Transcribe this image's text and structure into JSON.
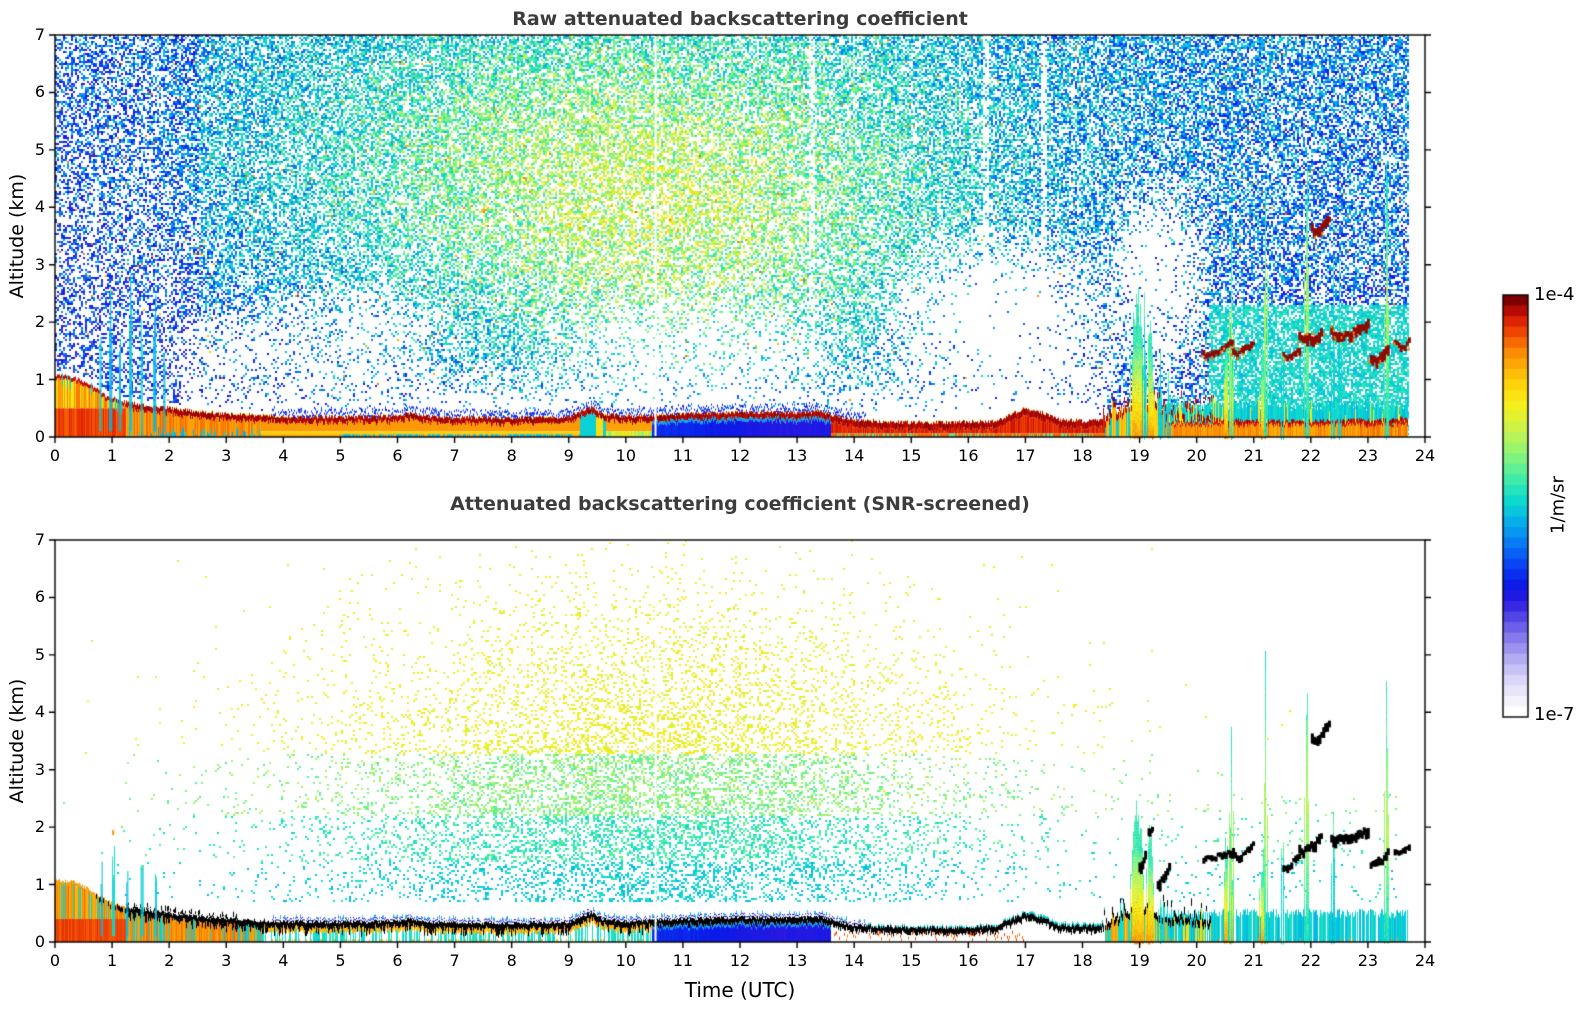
{
  "colors": {
    "background": "#ffffff",
    "frame": "#000000",
    "title_color": "#3c3c3c",
    "cloud_mark_raw": "#8f0b00",
    "cloud_mark_screened": "#000000",
    "colormap": [
      [
        0.0,
        "#ffffff"
      ],
      [
        0.04,
        "#eeecfc"
      ],
      [
        0.08,
        "#d8d4f8"
      ],
      [
        0.13,
        "#b2aaf2"
      ],
      [
        0.18,
        "#8678ec"
      ],
      [
        0.23,
        "#5246e6"
      ],
      [
        0.27,
        "#2718e2"
      ],
      [
        0.31,
        "#0b1ae8"
      ],
      [
        0.35,
        "#0a3cf2"
      ],
      [
        0.39,
        "#0966f6"
      ],
      [
        0.43,
        "#0790f2"
      ],
      [
        0.47,
        "#06b6e6"
      ],
      [
        0.51,
        "#0cd8d0"
      ],
      [
        0.55,
        "#2fe8b4"
      ],
      [
        0.59,
        "#5ff095"
      ],
      [
        0.63,
        "#90f476"
      ],
      [
        0.67,
        "#baf357"
      ],
      [
        0.71,
        "#def236"
      ],
      [
        0.75,
        "#f9ef18"
      ],
      [
        0.79,
        "#fdd70d"
      ],
      [
        0.83,
        "#fdb608"
      ],
      [
        0.87,
        "#fb8f05"
      ],
      [
        0.9,
        "#f76503"
      ],
      [
        0.93,
        "#ec3a02"
      ],
      [
        0.96,
        "#d31703"
      ],
      [
        0.98,
        "#ab0604"
      ],
      [
        1.0,
        "#7e0000"
      ]
    ]
  },
  "colorbar": {
    "max_label": "1e-4",
    "min_label": "1e-7",
    "unit_label": "1/m/sr",
    "steps": 40
  },
  "chart_data": [
    {
      "type": "heatmap",
      "variant": "raw",
      "title": "Raw attenuated backscattering coefficient",
      "xlabel": "",
      "ylabel": "Altitude (km)",
      "xlim": [
        0,
        24
      ],
      "ylim": [
        0,
        7
      ],
      "xticks": [
        0,
        1,
        2,
        3,
        4,
        5,
        6,
        7,
        8,
        9,
        10,
        11,
        12,
        13,
        14,
        15,
        16,
        17,
        18,
        19,
        20,
        21,
        22,
        23,
        24
      ],
      "yticks": [
        0,
        1,
        2,
        3,
        4,
        5,
        6,
        7
      ],
      "value_range": [
        "1e-7",
        "1e-4"
      ],
      "units": "1/m/sr",
      "data_end_time": 23.7,
      "features": {
        "noise_base_density": 0.5,
        "noise_holes": [
          [
            16.5,
            1.9,
            2.4,
            1.9,
            0.03
          ],
          [
            11.2,
            1.5,
            3.0,
            1.2,
            0.25
          ],
          [
            5.0,
            1.7,
            2.2,
            1.1,
            0.3
          ],
          [
            19.3,
            2.8,
            1.0,
            2.0,
            0.08
          ],
          [
            2.9,
            1.5,
            1.2,
            0.8,
            0.3
          ]
        ],
        "faint_gap_times": [
          13.25,
          16.3,
          17.3
        ],
        "gap_times": [
          10.52
        ],
        "boundary_layer_km": [
          [
            0,
            1.08
          ],
          [
            0.3,
            1.05
          ],
          [
            0.6,
            0.93
          ],
          [
            0.9,
            0.72
          ],
          [
            1.2,
            0.62
          ],
          [
            1.6,
            0.55
          ],
          [
            2.0,
            0.5
          ],
          [
            2.5,
            0.44
          ],
          [
            3.0,
            0.4
          ],
          [
            4,
            0.36
          ],
          [
            5,
            0.35
          ],
          [
            6,
            0.36
          ],
          [
            6.2,
            0.42
          ],
          [
            6.4,
            0.36
          ],
          [
            7,
            0.34
          ],
          [
            8,
            0.33
          ],
          [
            9,
            0.35
          ],
          [
            9.4,
            0.52
          ],
          [
            9.6,
            0.4
          ],
          [
            10,
            0.36
          ],
          [
            10.5,
            0.38
          ],
          [
            11,
            0.4
          ],
          [
            11.5,
            0.42
          ],
          [
            12,
            0.43
          ],
          [
            12.5,
            0.43
          ],
          [
            13,
            0.42
          ],
          [
            13.4,
            0.44
          ],
          [
            13.7,
            0.36
          ],
          [
            14,
            0.3
          ],
          [
            14.5,
            0.27
          ],
          [
            15,
            0.25
          ],
          [
            15.5,
            0.25
          ],
          [
            16,
            0.26
          ],
          [
            16.5,
            0.28
          ],
          [
            17.0,
            0.5
          ],
          [
            17.3,
            0.42
          ],
          [
            17.6,
            0.3
          ],
          [
            18,
            0.28
          ],
          [
            18.4,
            0.3
          ],
          [
            18.7,
            0.45
          ],
          [
            19.0,
            0.6
          ],
          [
            19.2,
            0.5
          ],
          [
            19.5,
            0.42
          ],
          [
            19.8,
            0.38
          ],
          [
            20.2,
            0.35
          ],
          [
            20.6,
            0.3
          ],
          [
            21,
            0.28
          ],
          [
            22,
            0.28
          ],
          [
            23,
            0.3
          ],
          [
            23.7,
            0.33
          ]
        ],
        "blue_wedge_time": [
          10.45,
          13.6
        ],
        "cyan_layer_time": [
          19.45,
          23.7
        ],
        "left_streaks": [
          [
            0.78,
            0.04,
            1.8
          ],
          [
            0.95,
            0.05,
            2.3
          ],
          [
            1.12,
            0.04,
            1.5
          ],
          [
            1.3,
            0.05,
            2.5
          ],
          [
            1.5,
            0.04,
            1.9
          ],
          [
            1.72,
            0.05,
            2.2
          ],
          [
            1.9,
            0.04,
            1.4
          ]
        ],
        "plumes": [
          {
            "t": 18.95,
            "w": 0.22,
            "top": 2.3,
            "kind": "yellow"
          },
          {
            "t": 19.18,
            "w": 0.12,
            "top": 1.9,
            "kind": "yellow"
          },
          {
            "t": 19.07,
            "w": 0.05,
            "top": 2.55,
            "kind": "cyan"
          },
          {
            "t": 19.35,
            "w": 0.06,
            "top": 1.45,
            "kind": "cyan"
          },
          {
            "t": 19.5,
            "w": 0.05,
            "top": 1.1,
            "kind": "cyan"
          },
          {
            "t": 20.55,
            "w": 0.14,
            "top": 2.0,
            "kind": "yellow"
          },
          {
            "t": 20.6,
            "w": 0.06,
            "top": 3.4,
            "kind": "green"
          },
          {
            "t": 21.15,
            "w": 0.1,
            "top": 1.55,
            "kind": "yellow"
          },
          {
            "t": 21.2,
            "w": 0.05,
            "top": 4.6,
            "kind": "green"
          },
          {
            "t": 21.5,
            "w": 0.04,
            "top": 2.85,
            "kind": "cyan"
          },
          {
            "t": 21.92,
            "w": 0.07,
            "top": 4.95,
            "kind": "green"
          },
          {
            "t": 22.38,
            "w": 0.05,
            "top": 2.75,
            "kind": "cyan"
          },
          {
            "t": 22.5,
            "w": 0.05,
            "top": 3.6,
            "kind": "cyan"
          },
          {
            "t": 23.32,
            "w": 0.07,
            "top": 4.35,
            "kind": "green"
          }
        ],
        "cloud_segments": [
          {
            "t0": 20.1,
            "t1": 20.6,
            "z0": 1.4,
            "z1": 1.62
          },
          {
            "t0": 20.62,
            "t1": 20.97,
            "z0": 1.39,
            "z1": 1.66
          },
          {
            "t0": 21.5,
            "t1": 21.78,
            "z0": 1.3,
            "z1": 1.55
          },
          {
            "t0": 21.78,
            "t1": 22.16,
            "z0": 1.5,
            "z1": 1.85
          },
          {
            "t0": 22.0,
            "t1": 22.3,
            "z0": 3.45,
            "z1": 3.85
          },
          {
            "t0": 22.34,
            "t1": 22.98,
            "z0": 1.65,
            "z1": 1.98
          },
          {
            "t0": 23.03,
            "t1": 23.33,
            "z0": 1.25,
            "z1": 1.55
          },
          {
            "t0": 23.45,
            "t1": 23.7,
            "z0": 1.5,
            "z1": 1.7
          }
        ]
      }
    },
    {
      "type": "heatmap",
      "variant": "snr_screened",
      "title": "Attenuated backscattering coefficient (SNR-screened)",
      "xlabel": "Time (UTC)",
      "ylabel": "Altitude (km)",
      "xlim": [
        0,
        24
      ],
      "ylim": [
        0,
        7
      ],
      "xticks": [
        0,
        1,
        2,
        3,
        4,
        5,
        6,
        7,
        8,
        9,
        10,
        11,
        12,
        13,
        14,
        15,
        16,
        17,
        18,
        19,
        20,
        21,
        22,
        23,
        24
      ],
      "yticks": [
        0,
        1,
        2,
        3,
        4,
        5,
        6,
        7
      ],
      "value_range": [
        "1e-7",
        "1e-4"
      ],
      "units": "1/m/sr",
      "data_end_time": 23.7,
      "features": {
        "speckle_cloud": {
          "t_center": 10.3,
          "t_sigma": 3.4,
          "z_center": 1.9,
          "z_sigma": 1.55,
          "peak_density": 0.4,
          "tail": {
            "t_center": 10.8,
            "t_sigma": 2.6,
            "z_center": 4.2,
            "z_sigma": 1.3,
            "peak_density": 0.1
          }
        },
        "gap_times": [
          10.52
        ],
        "black_layer_time": [
          0.7,
          20.25
        ],
        "blue_wedge_time": [
          10.45,
          13.6
        ],
        "cyan_layer_time": [
          19.45,
          23.7
        ],
        "isolated_dots": [
          {
            "t": 1.0,
            "z": 1.95,
            "kind": "orange"
          }
        ],
        "left_streaks": [
          [
            0.8,
            0.04,
            1.3
          ],
          [
            1.0,
            0.05,
            1.5
          ],
          [
            1.25,
            0.04,
            1.1
          ],
          [
            1.5,
            0.05,
            1.4
          ],
          [
            1.75,
            0.04,
            1.2
          ]
        ],
        "plumes": [
          {
            "t": 18.95,
            "w": 0.22,
            "top": 2.3,
            "kind": "yellow"
          },
          {
            "t": 19.18,
            "w": 0.12,
            "top": 1.9,
            "kind": "yellow"
          },
          {
            "t": 19.35,
            "w": 0.06,
            "top": 0.9,
            "kind": "cyan"
          },
          {
            "t": 20.55,
            "w": 0.14,
            "top": 2.0,
            "kind": "yellow"
          },
          {
            "t": 20.6,
            "w": 0.06,
            "top": 3.4,
            "kind": "green"
          },
          {
            "t": 21.15,
            "w": 0.1,
            "top": 1.55,
            "kind": "yellow"
          },
          {
            "t": 21.2,
            "w": 0.05,
            "top": 4.6,
            "kind": "green"
          },
          {
            "t": 21.5,
            "w": 0.04,
            "top": 2.6,
            "kind": "cyan"
          },
          {
            "t": 21.92,
            "w": 0.07,
            "top": 4.95,
            "kind": "green"
          },
          {
            "t": 22.38,
            "w": 0.05,
            "top": 2.75,
            "kind": "cyan"
          },
          {
            "t": 23.32,
            "w": 0.07,
            "top": 4.35,
            "kind": "green"
          }
        ],
        "cloud_segments": [
          {
            "t0": 20.1,
            "t1": 20.6,
            "z0": 1.4,
            "z1": 1.62
          },
          {
            "t0": 20.62,
            "t1": 20.97,
            "z0": 1.39,
            "z1": 1.66
          },
          {
            "t0": 21.5,
            "t1": 21.78,
            "z0": 1.3,
            "z1": 1.55
          },
          {
            "t0": 21.78,
            "t1": 22.16,
            "z0": 1.5,
            "z1": 1.85
          },
          {
            "t0": 22.0,
            "t1": 22.3,
            "z0": 3.45,
            "z1": 3.85
          },
          {
            "t0": 22.34,
            "t1": 22.98,
            "z0": 1.65,
            "z1": 1.98
          },
          {
            "t0": 23.03,
            "t1": 23.33,
            "z0": 1.25,
            "z1": 1.55
          },
          {
            "t0": 23.45,
            "t1": 23.7,
            "z0": 1.5,
            "z1": 1.7
          },
          {
            "t0": 18.98,
            "t1": 19.08,
            "z0": 1.3,
            "z1": 1.6
          },
          {
            "t0": 19.14,
            "t1": 19.2,
            "z0": 1.85,
            "z1": 2.05
          },
          {
            "t0": 19.3,
            "t1": 19.5,
            "z0": 1.0,
            "z1": 1.4
          }
        ]
      }
    }
  ]
}
